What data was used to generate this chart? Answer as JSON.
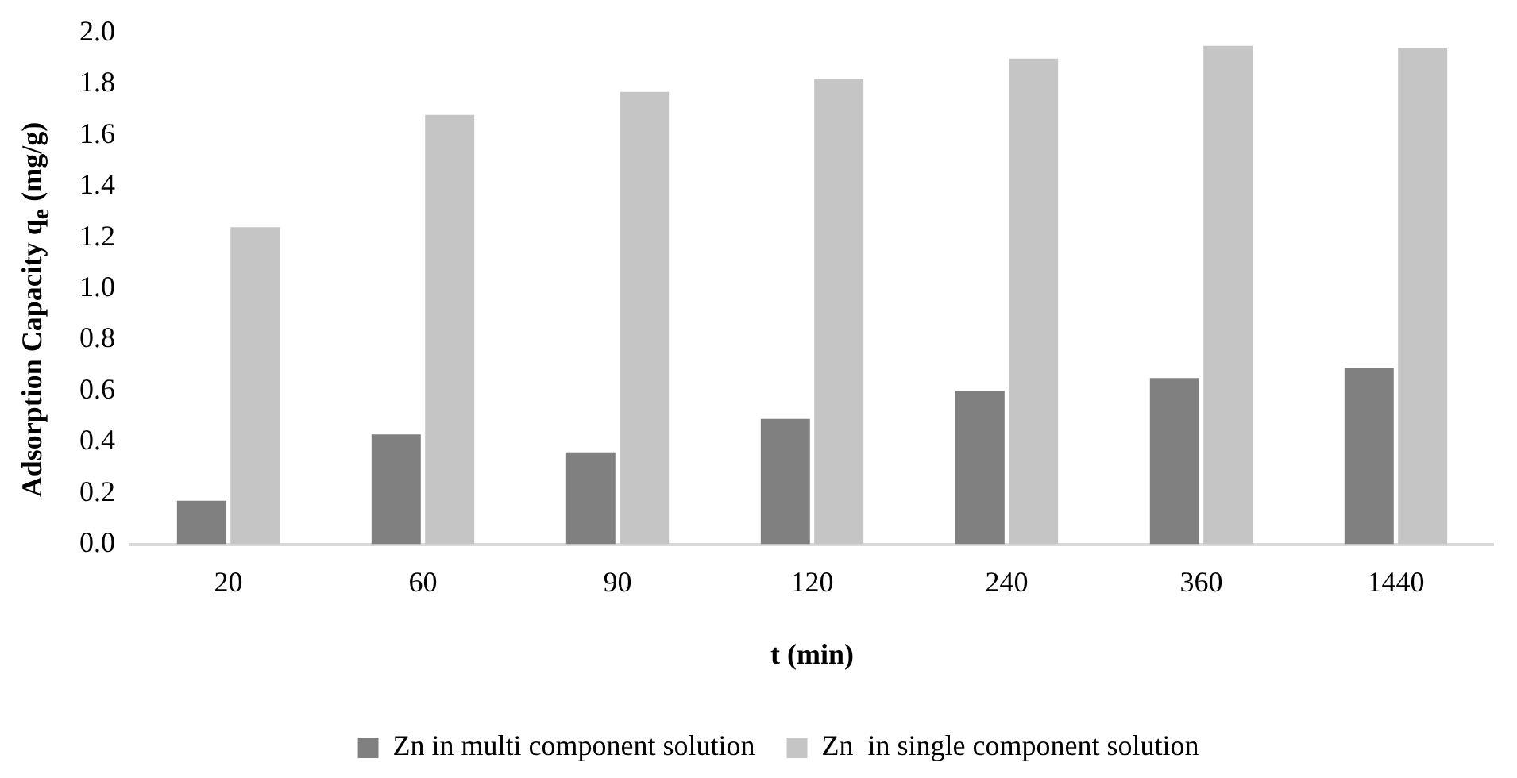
{
  "chart_data": {
    "type": "bar",
    "xlabel": "t (min)",
    "ylabel": "Adsorption Capacity q$_{e}$ (mg/g)",
    "categories": [
      "20",
      "60",
      "90",
      "120",
      "240",
      "360",
      "1440"
    ],
    "series": [
      {
        "name": "Zn in multi component solution",
        "color": "#808080",
        "values": [
          0.17,
          0.43,
          0.36,
          0.49,
          0.6,
          0.65,
          0.69
        ]
      },
      {
        "name": "Zn  in single component solution",
        "color": "#c5c5c5",
        "values": [
          1.24,
          1.68,
          1.77,
          1.82,
          1.9,
          1.95,
          1.94
        ]
      }
    ],
    "ylim": [
      0,
      2.0
    ],
    "yticks": [
      {
        "value": 0,
        "label": "0.0"
      },
      {
        "value": 0.2,
        "label": "0.2"
      },
      {
        "value": 0.4,
        "label": "0.4"
      },
      {
        "value": 0.6,
        "label": "0.6"
      },
      {
        "value": 0.8,
        "label": "0.8"
      },
      {
        "value": 1.0,
        "label": "1.0"
      },
      {
        "value": 1.2,
        "label": "1.2"
      },
      {
        "value": 1.4,
        "label": "1.4"
      },
      {
        "value": 1.6,
        "label": "1.6"
      },
      {
        "value": 1.8,
        "label": "1.8"
      },
      {
        "value": 2.0,
        "label": "2.0"
      }
    ],
    "grid": false,
    "legend": "bottom"
  }
}
